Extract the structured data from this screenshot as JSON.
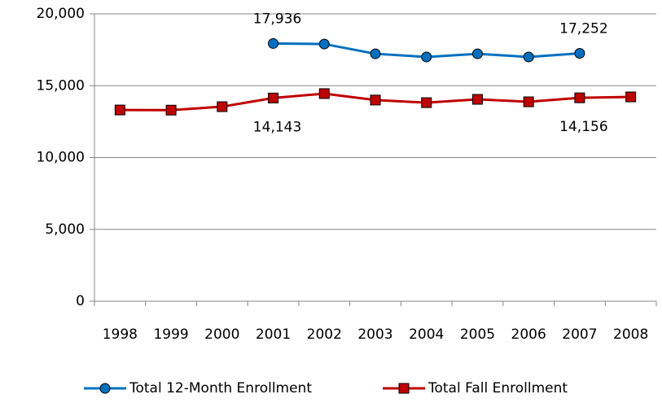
{
  "chart_data": {
    "type": "line",
    "categories": [
      "1998",
      "1999",
      "2000",
      "2001",
      "2002",
      "2003",
      "2004",
      "2005",
      "2006",
      "2007",
      "2008"
    ],
    "series": [
      {
        "name": "Total 12-Month Enrollment",
        "color": "#0070c0",
        "marker": "circle",
        "values": [
          null,
          null,
          null,
          17936,
          17900,
          17220,
          17000,
          17220,
          17000,
          17252,
          null
        ],
        "value_labels": [
          null,
          null,
          null,
          "17,936",
          null,
          null,
          null,
          null,
          null,
          "17,252",
          null
        ]
      },
      {
        "name": "Total Fall Enrollment",
        "color": "#c00000",
        "marker": "square",
        "values": [
          13310,
          13300,
          13540,
          14143,
          14450,
          14000,
          13820,
          14050,
          13880,
          14156,
          14220
        ],
        "value_labels": [
          null,
          null,
          null,
          "14,143",
          null,
          null,
          null,
          null,
          null,
          "14,156",
          null
        ]
      }
    ],
    "ylim": [
      0,
      20000
    ],
    "yticks": [
      0,
      {
        "value": 5000,
        "label": "5,000"
      },
      {
        "value": 10000,
        "label": "10,000"
      },
      {
        "value": 15000,
        "label": "15,000"
      },
      {
        "value": 20000,
        "label": "20,000"
      }
    ],
    "grid": true,
    "legend": "bottom"
  }
}
